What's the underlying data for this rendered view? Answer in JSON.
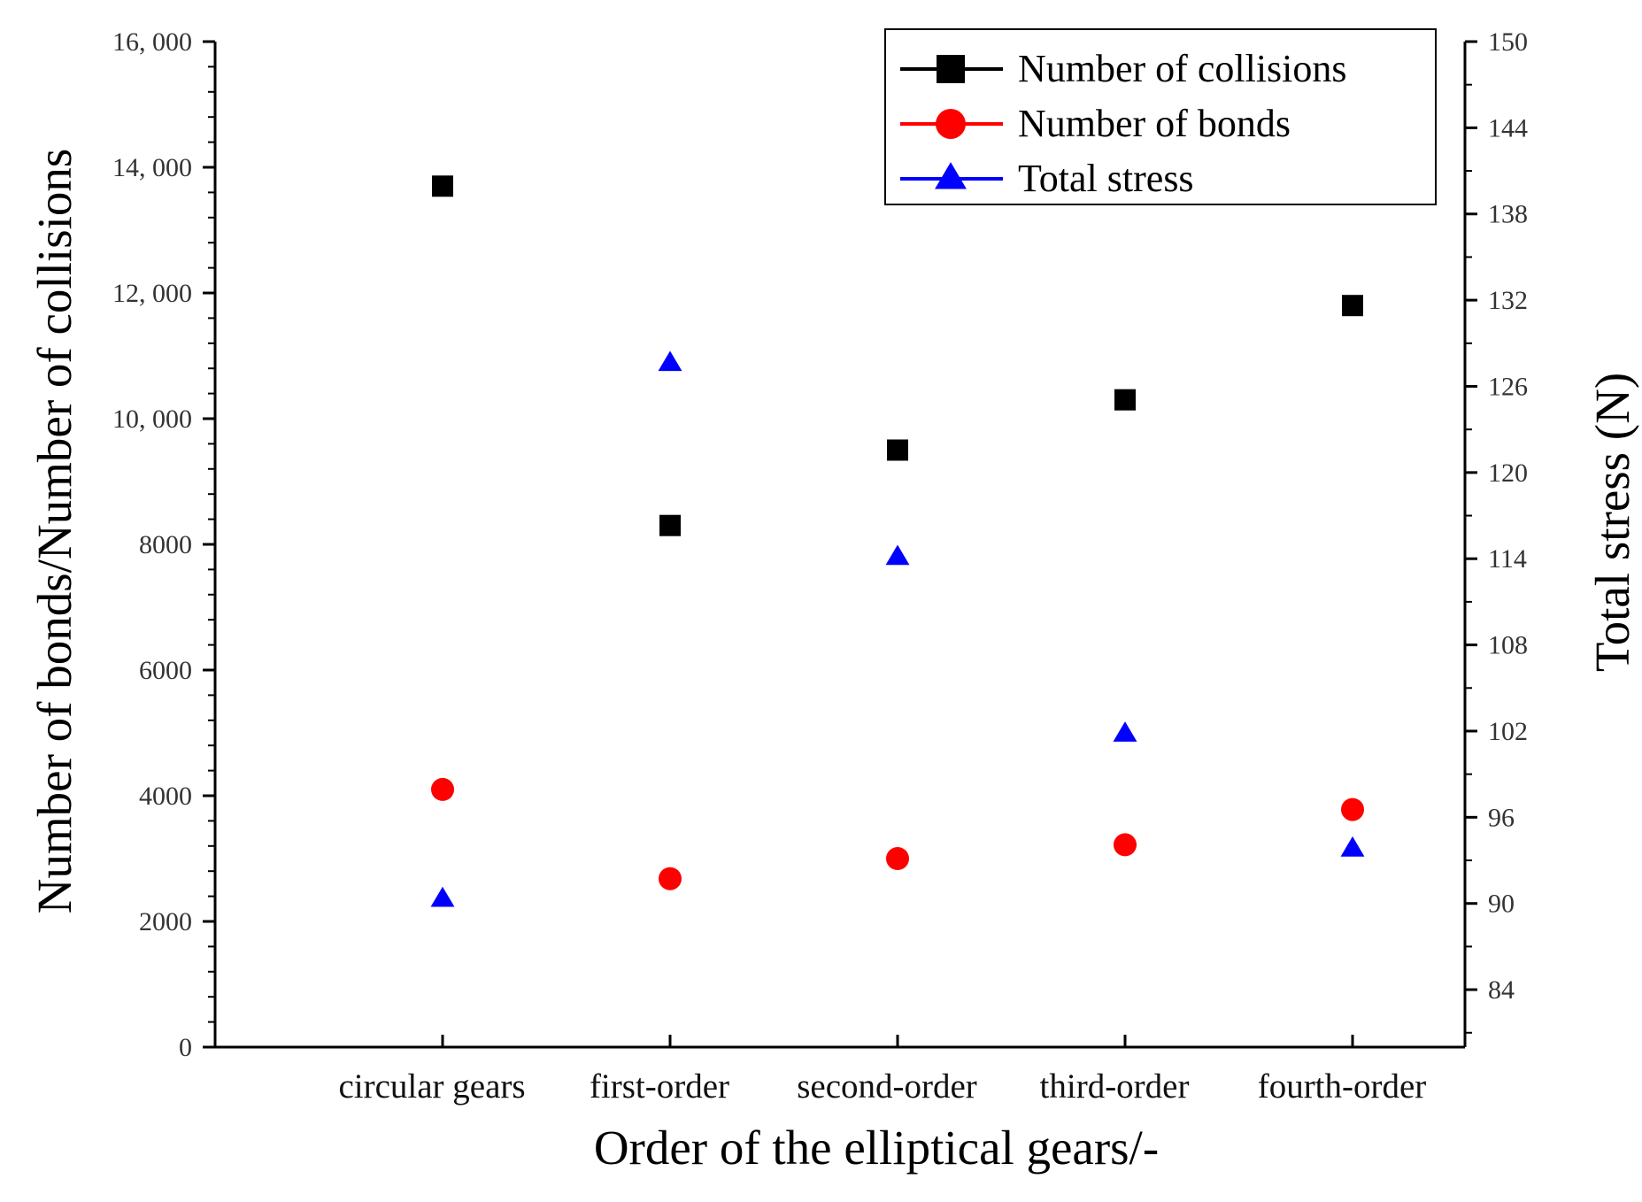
{
  "chart_data": {
    "type": "scatter",
    "categories": [
      "circular gears",
      "first-order",
      "second-order",
      "third-order",
      "fourth-order"
    ],
    "xlabel": "Order of the elliptical gears/-",
    "ylabel_left": "Number of bonds/Number of collisions",
    "ylabel_right": "Total stress (N)",
    "ylim_left": [
      0,
      16000
    ],
    "ylim_right": [
      80,
      150
    ],
    "yticks_left": [
      0,
      2000,
      4000,
      6000,
      8000,
      10000,
      12000,
      14000,
      16000
    ],
    "yticks_left_labels": [
      "0",
      "2000",
      "4000",
      "6000",
      "8000",
      "10, 000",
      "12, 000",
      "14, 000",
      "16, 000"
    ],
    "yticks_right": [
      84,
      90,
      96,
      102,
      108,
      114,
      120,
      126,
      132,
      138,
      144,
      150
    ],
    "yticks_right_labels": [
      "84",
      "90",
      "96",
      "102",
      "108",
      "114",
      "120",
      "126",
      "132",
      "138",
      "144",
      "150"
    ],
    "grid": false,
    "legend_position": "top-right",
    "series": [
      {
        "name": "Number of collisions",
        "axis": "left",
        "marker": "square",
        "color": "#000000",
        "values": [
          13700,
          8300,
          9500,
          10300,
          11800
        ]
      },
      {
        "name": "Number of bonds",
        "axis": "left",
        "marker": "circle",
        "color": "#ff0000",
        "values": [
          4100,
          2680,
          3000,
          3220,
          3780
        ]
      },
      {
        "name": "Total stress",
        "axis": "right",
        "marker": "triangle",
        "color": "#0000ff",
        "values": [
          90.3,
          127.6,
          114.1,
          101.8,
          93.8
        ]
      }
    ]
  }
}
